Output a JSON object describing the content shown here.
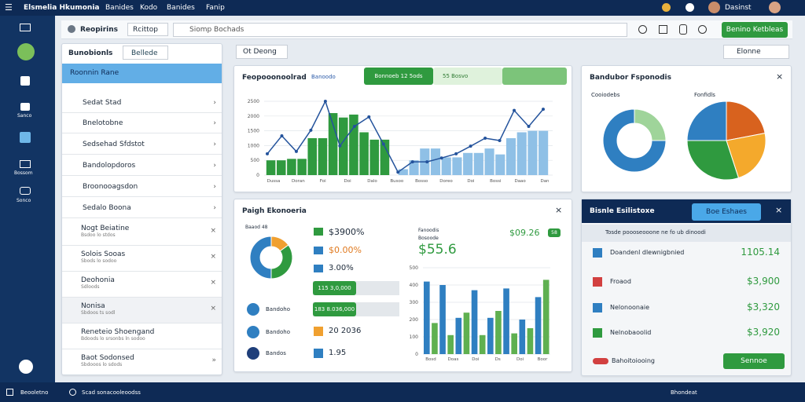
{
  "topbar": {
    "title": "Elsmelia Hkumonia",
    "menu": [
      "Banides",
      "Kodo",
      "Banides",
      "Fanip"
    ],
    "user": "Dasinst"
  },
  "sidebar": {
    "labels": [
      "Sanco",
      "Bossom",
      "Sonco"
    ]
  },
  "toolbar": {
    "title": "Reopirins",
    "dropdown": "Rcittop",
    "search": "Siomp Bochads",
    "button": "Benino Ketbleas"
  },
  "list": {
    "title": "Bunobionls",
    "filter": "Bellede",
    "selected": "Roonnin Rane",
    "items": [
      "Sedat Stad",
      "Bnelotobne",
      "Sedsehad Sfdstot",
      "Bandolopdoros",
      "Broonooagsdon",
      "Sedalo Boona"
    ],
    "entries": [
      {
        "title": "Nogt Beiatine",
        "subtitle": "Bsdoo lo stdos"
      },
      {
        "title": "Solois Sooas",
        "subtitle": "Sbods lo sodoo"
      },
      {
        "title": "Deohonia",
        "subtitle": "Sdloods"
      },
      {
        "title": "Nonisa",
        "subtitle": "Sbdoos ts sodl"
      },
      {
        "title": "Reneteio Shoengand",
        "subtitle": "Bdoods lo srsonbs ln sodoo"
      },
      {
        "title": "Baot Sodonsed",
        "subtitle": "Sbdooos lo sdods"
      }
    ]
  },
  "filters": {
    "left": "Ot Deong",
    "right": "Elonne"
  },
  "chart1": {
    "title": "Feopooonoolrad",
    "legend": [
      "Banoodo",
      "Bonnoeb 12 5ods",
      "55 Bosvo"
    ],
    "ylim": [
      0,
      2500
    ],
    "yticks": [
      0,
      500,
      1000,
      1500,
      2000,
      2500
    ],
    "xlabels": [
      "Dussa",
      "Doran",
      "Foi",
      "Doi",
      "Dalo",
      "Busoo",
      "Bosso",
      "Doreo",
      "Doi",
      "Bossi",
      "Daao",
      "Dan"
    ],
    "green": [
      500,
      500,
      550,
      550,
      1250,
      1250,
      2100,
      1950,
      2050,
      1450,
      1200,
      1200
    ],
    "green_color": "#2f9a3f",
    "blue": [
      200,
      500,
      900,
      900,
      600,
      600,
      750,
      750,
      900,
      700,
      1250,
      1450,
      1500,
      1500
    ],
    "blue_color": "#8fc0e6",
    "line": [
      720,
      1330,
      800,
      1520,
      2500,
      990,
      1650,
      1970,
      1050,
      100,
      450,
      450,
      580,
      720,
      980,
      1250,
      1170,
      2190,
      1650,
      2230
    ],
    "line_color": "#24539c"
  },
  "chart2": {
    "title": "Bandubor Fsponodis",
    "donut_label": "Cooiodebs",
    "donut": [
      25,
      75
    ],
    "donut_colors": [
      "#9fd49a",
      "#2f7fc1"
    ],
    "pie_label": "Fonfidls",
    "pie": [
      22,
      23,
      30,
      25
    ],
    "pie_colors": [
      "#d8621e",
      "#f4a92c",
      "#2f9a3f",
      "#2f7fc1"
    ]
  },
  "panel3": {
    "title": "Paigh Ekonoeria",
    "donut_label": "Baaod 48",
    "donut": [
      15,
      35,
      50
    ],
    "donut_colors": [
      "#f0a030",
      "#2f9a3f",
      "#2f7fc1"
    ],
    "stats": [
      "$3900%",
      "$0.00%",
      "3.00%"
    ],
    "bars": [
      "115 3,0,000",
      "183 8.036,000"
    ],
    "rows": [
      "20 2036",
      "1.95"
    ],
    "circles": [
      "Bandoho",
      "Bandoho",
      "Bandos"
    ],
    "legend": [
      "Fanoodis",
      "Bosoode"
    ],
    "kpi": "$55.6",
    "kpi2": "$09.26",
    "tag": "58",
    "ylim": [
      0,
      500
    ],
    "yticks": [
      0,
      100,
      200,
      300,
      400,
      500
    ],
    "values": [
      420,
      180,
      400,
      110,
      210,
      240,
      370,
      110,
      210,
      250,
      380,
      120,
      200,
      150,
      330,
      430
    ],
    "colors": [
      "#2f7fc1",
      "#5fb050"
    ],
    "xlabels": [
      "Bosd",
      "Doas",
      "Doi",
      "Ds",
      "Doi",
      "Boor"
    ]
  },
  "panel4": {
    "title": "Bisnle Esilistoxe",
    "tab": "Boe Eshaes",
    "notice": "Tosde poooseooone ne fo ub dinoodi",
    "rows": [
      {
        "label": "Doandenl dlewnigbnied",
        "amount": "1105.14"
      },
      {
        "label": "Froaod",
        "amount": "$3,900"
      },
      {
        "label": "Nelonoonaie",
        "amount": "$3,320"
      },
      {
        "label": "Nelnobaoolid",
        "amount": "$3,920"
      }
    ],
    "footer": "Bahoitoiooing",
    "button": "Sennoe"
  },
  "statusbar": {
    "left": "Beooletno",
    "middle": "Scad sonacooleoodss",
    "right": "Bhondeat"
  }
}
